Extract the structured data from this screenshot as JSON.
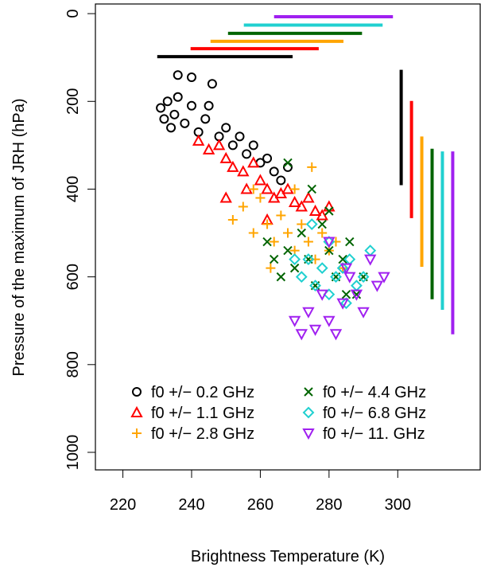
{
  "chart_data": {
    "type": "scatter",
    "x_label": "Brightness Temperature (K)",
    "y_label": "Pressure of the maximum of JRH (hPa)",
    "xlim": [
      212,
      324
    ],
    "ylim": [
      1040,
      -22
    ],
    "xticks": [
      220,
      240,
      260,
      280,
      300
    ],
    "yticks": [
      0,
      200,
      400,
      600,
      800,
      1000
    ],
    "legend_position": "bottom-left",
    "series": [
      {
        "name": "f0 +/− 0.2 GHz",
        "color": "#000000",
        "marker": "circle",
        "x": [
          231,
          232,
          233,
          234,
          235,
          236,
          238,
          240,
          242,
          244,
          246,
          248,
          250,
          252,
          254,
          256,
          258,
          260,
          262,
          264,
          266,
          268,
          236,
          240,
          245
        ],
        "values": [
          215,
          240,
          200,
          260,
          230,
          190,
          250,
          210,
          270,
          240,
          160,
          280,
          260,
          300,
          280,
          320,
          300,
          340,
          330,
          360,
          380,
          350,
          140,
          145,
          210
        ],
        "range_line_h": {
          "y": 98,
          "x": [
            230,
            269.4
          ]
        },
        "range_line_v": {
          "x": 301,
          "y": [
            128,
            391
          ]
        }
      },
      {
        "name": "f0 +/− 1.1 GHz",
        "color": "#ff0000",
        "marker": "triangle",
        "x": [
          242,
          245,
          248,
          250,
          252,
          255,
          258,
          260,
          262,
          264,
          266,
          268,
          270,
          272,
          274,
          276,
          278,
          280,
          256,
          262,
          250
        ],
        "values": [
          290,
          310,
          300,
          330,
          350,
          360,
          340,
          380,
          400,
          420,
          410,
          400,
          430,
          440,
          420,
          450,
          460,
          440,
          400,
          470,
          420
        ],
        "range_line_h": {
          "y": 80,
          "x": [
            239.7,
            277
          ]
        },
        "range_line_v": {
          "x": 304,
          "y": [
            199,
            466
          ]
        }
      },
      {
        "name": "f0 +/− 2.8 GHz",
        "color": "#ffa500",
        "marker": "plus",
        "x": [
          252,
          255,
          258,
          260,
          262,
          264,
          266,
          268,
          270,
          272,
          274,
          276,
          278,
          280,
          282,
          284,
          263,
          270,
          258,
          275
        ],
        "values": [
          470,
          440,
          500,
          420,
          480,
          520,
          460,
          500,
          540,
          480,
          520,
          560,
          500,
          540,
          520,
          580,
          580,
          400,
          400,
          350
        ],
        "range_line_h": {
          "y": 63,
          "x": [
            245.5,
            284.2
          ]
        },
        "range_line_v": {
          "x": 307,
          "y": [
            280,
            577
          ]
        }
      },
      {
        "name": "f0 +/− 4.4 GHz",
        "color": "#006400",
        "marker": "cross",
        "x": [
          262,
          264,
          266,
          268,
          270,
          272,
          274,
          276,
          278,
          280,
          282,
          284,
          286,
          288,
          290,
          268,
          275,
          280,
          285
        ],
        "values": [
          520,
          560,
          600,
          540,
          580,
          500,
          560,
          620,
          480,
          540,
          600,
          560,
          520,
          640,
          600,
          340,
          400,
          450,
          640
        ],
        "range_line_h": {
          "y": 45,
          "x": [
            250.6,
            289.6
          ]
        },
        "range_line_v": {
          "x": 310,
          "y": [
            308,
            651
          ]
        }
      },
      {
        "name": "f0 +/− 6.8 GHz",
        "color": "#20d0d0",
        "marker": "diamond",
        "x": [
          270,
          272,
          274,
          276,
          278,
          280,
          282,
          284,
          286,
          288,
          290,
          292,
          275,
          280,
          285
        ],
        "values": [
          560,
          600,
          560,
          620,
          580,
          640,
          600,
          580,
          560,
          620,
          600,
          540,
          480,
          520,
          660
        ],
        "range_line_h": {
          "y": 26,
          "x": [
            255.2,
            295.6
          ]
        },
        "range_line_v": {
          "x": 313,
          "y": [
            314,
            675
          ]
        }
      },
      {
        "name": "f0 +/− 11. GHz",
        "color": "#a020f0",
        "marker": "triangle-down",
        "x": [
          270,
          272,
          274,
          276,
          278,
          280,
          282,
          284,
          286,
          288,
          290,
          292,
          294,
          296,
          280,
          285
        ],
        "values": [
          700,
          730,
          680,
          720,
          640,
          700,
          730,
          660,
          600,
          640,
          680,
          560,
          620,
          600,
          520,
          580
        ],
        "range_line_h": {
          "y": 7,
          "x": [
            264,
            298.6
          ]
        },
        "range_line_v": {
          "x": 316,
          "y": [
            314,
            731
          ]
        }
      }
    ]
  }
}
